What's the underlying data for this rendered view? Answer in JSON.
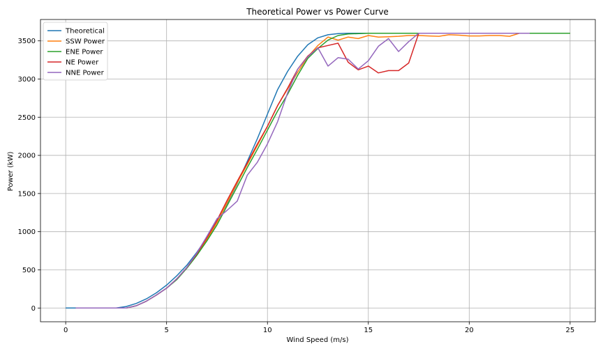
{
  "chart_data": {
    "type": "line",
    "title": "Theoretical Power vs Power Curve",
    "xlabel": "Wind Speed (m/s)",
    "ylabel": "Power (kW)",
    "xlim": [
      -1.25,
      26.25
    ],
    "ylim": [
      -180,
      3780
    ],
    "xticks": [
      0,
      5,
      10,
      15,
      20,
      25
    ],
    "yticks": [
      0,
      500,
      1000,
      1500,
      2000,
      2500,
      3000,
      3500
    ],
    "grid": true,
    "legend_position": "upper-left",
    "series": [
      {
        "name": "Theoretical",
        "color": "#1f77b4",
        "x": [
          0,
          0.5,
          1,
          1.5,
          2,
          2.5,
          3,
          3.5,
          4,
          4.5,
          5,
          5.5,
          6,
          6.5,
          7,
          7.5,
          8,
          8.5,
          9,
          9.5,
          10,
          10.5,
          11,
          11.5,
          12,
          12.5,
          13,
          13.5,
          14,
          15,
          16,
          17,
          18,
          19,
          20,
          21,
          22,
          22.5
        ],
        "y": [
          0,
          0,
          0,
          0,
          0,
          0,
          20,
          60,
          120,
          200,
          300,
          420,
          560,
          730,
          920,
          1130,
          1370,
          1630,
          1920,
          2220,
          2540,
          2860,
          3100,
          3300,
          3450,
          3540,
          3580,
          3595,
          3600,
          3600,
          3600,
          3600,
          3600,
          3600,
          3600,
          3600,
          3600,
          3600
        ]
      },
      {
        "name": "SSW Power",
        "color": "#ff7f0e",
        "x": [
          0.5,
          1,
          1.5,
          2,
          2.5,
          3,
          3.5,
          4,
          4.5,
          5,
          5.5,
          6,
          6.5,
          7,
          7.5,
          8,
          8.5,
          9,
          9.5,
          10,
          10.5,
          11,
          11.5,
          12,
          12.5,
          13,
          13.5,
          14,
          14.5,
          15,
          15.5,
          16,
          16.5,
          17,
          17.5,
          18,
          18.5,
          19,
          19.5,
          20,
          20.5,
          21,
          21.5,
          22,
          22.5,
          23,
          24,
          25
        ],
        "y": [
          0,
          0,
          0,
          0,
          0,
          0,
          30,
          90,
          170,
          260,
          380,
          530,
          700,
          900,
          1120,
          1380,
          1640,
          1880,
          2130,
          2380,
          2650,
          2870,
          3090,
          3290,
          3440,
          3550,
          3510,
          3550,
          3530,
          3570,
          3550,
          3555,
          3560,
          3570,
          3570,
          3565,
          3560,
          3580,
          3575,
          3565,
          3565,
          3570,
          3570,
          3560,
          3600,
          3600,
          3600,
          3600
        ]
      },
      {
        "name": "ENE Power",
        "color": "#2ca02c",
        "x": [
          0.5,
          1,
          1.5,
          2,
          2.5,
          3,
          3.5,
          4,
          4.5,
          5,
          5.5,
          6,
          6.5,
          7,
          7.5,
          8,
          8.5,
          9,
          9.5,
          10,
          10.5,
          11,
          11.5,
          12,
          12.5,
          13,
          13.5,
          14,
          15,
          16,
          17,
          18,
          19,
          20,
          21,
          22,
          23,
          24,
          25
        ],
        "y": [
          0,
          0,
          0,
          0,
          0,
          0,
          30,
          90,
          170,
          260,
          370,
          520,
          690,
          880,
          1090,
          1340,
          1590,
          1840,
          2080,
          2330,
          2580,
          2800,
          3050,
          3270,
          3400,
          3510,
          3570,
          3590,
          3600,
          3600,
          3600,
          3600,
          3600,
          3600,
          3600,
          3600,
          3600,
          3600,
          3600
        ]
      },
      {
        "name": "NE Power",
        "color": "#d62728",
        "x": [
          0.5,
          1,
          1.5,
          2,
          2.5,
          3,
          3.5,
          4,
          4.5,
          5,
          5.5,
          6,
          6.5,
          7,
          7.5,
          8,
          8.5,
          9,
          9.5,
          10,
          10.5,
          11,
          11.5,
          12,
          12.5,
          13,
          13.5,
          14,
          14.5,
          15,
          15.5,
          16,
          16.5,
          17,
          17.5
        ],
        "y": [
          0,
          0,
          0,
          0,
          0,
          0,
          30,
          90,
          170,
          260,
          380,
          530,
          710,
          920,
          1150,
          1410,
          1660,
          1900,
          2150,
          2380,
          2650,
          2880,
          3130,
          3300,
          3410,
          3440,
          3470,
          3220,
          3120,
          3170,
          3080,
          3110,
          3110,
          3210,
          3600
        ]
      },
      {
        "name": "NNE Power",
        "color": "#9467bd",
        "x": [
          0.5,
          1,
          1.5,
          2,
          2.5,
          3,
          3.5,
          4,
          4.5,
          5,
          5.5,
          6,
          6.5,
          7,
          7.5,
          8,
          8.5,
          9,
          9.5,
          10,
          10.5,
          11,
          11.5,
          12,
          12.5,
          13,
          13.5,
          14,
          14.5,
          15,
          15.5,
          16,
          16.5,
          17,
          17.5,
          18,
          19,
          20,
          21,
          22,
          23
        ],
        "y": [
          0,
          0,
          0,
          0,
          0,
          0,
          30,
          90,
          170,
          260,
          380,
          530,
          720,
          940,
          1170,
          1280,
          1400,
          1740,
          1910,
          2150,
          2440,
          2820,
          3130,
          3290,
          3410,
          3170,
          3280,
          3260,
          3130,
          3240,
          3430,
          3530,
          3360,
          3490,
          3600,
          3600,
          3600,
          3600,
          3600,
          3600,
          3600
        ]
      }
    ]
  }
}
